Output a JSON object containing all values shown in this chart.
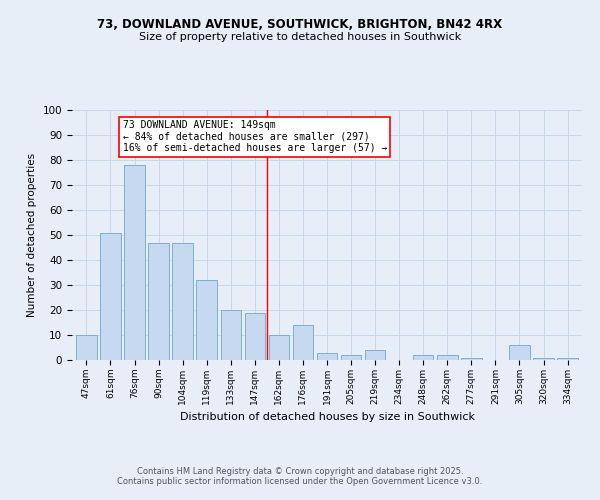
{
  "title1": "73, DOWNLAND AVENUE, SOUTHWICK, BRIGHTON, BN42 4RX",
  "title2": "Size of property relative to detached houses in Southwick",
  "xlabel": "Distribution of detached houses by size in Southwick",
  "ylabel": "Number of detached properties",
  "categories": [
    "47sqm",
    "61sqm",
    "76sqm",
    "90sqm",
    "104sqm",
    "119sqm",
    "133sqm",
    "147sqm",
    "162sqm",
    "176sqm",
    "191sqm",
    "205sqm",
    "219sqm",
    "234sqm",
    "248sqm",
    "262sqm",
    "277sqm",
    "291sqm",
    "305sqm",
    "320sqm",
    "334sqm"
  ],
  "values": [
    10,
    51,
    78,
    47,
    47,
    32,
    20,
    19,
    10,
    14,
    3,
    2,
    4,
    0,
    2,
    2,
    1,
    0,
    6,
    1,
    1
  ],
  "bar_color": "#c6d9f0",
  "bar_edge_color": "#7bafd4",
  "property_line_x": 7.5,
  "annotation_text": "73 DOWNLAND AVENUE: 149sqm\n← 84% of detached houses are smaller (297)\n16% of semi-detached houses are larger (57) →",
  "ylim": [
    0,
    100
  ],
  "grid_color": "#c8d8e8",
  "footer1": "Contains HM Land Registry data © Crown copyright and database right 2025.",
  "footer2": "Contains public sector information licensed under the Open Government Licence v3.0.",
  "bg_color": "#e8eef8"
}
